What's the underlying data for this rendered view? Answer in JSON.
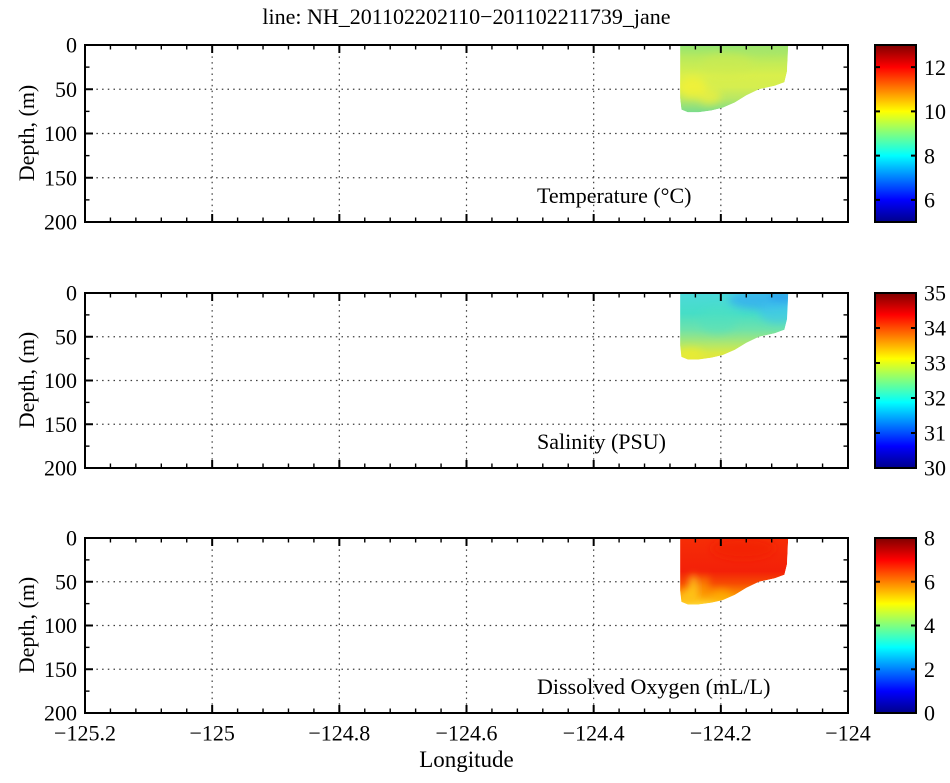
{
  "figure": {
    "background": "#ffffff",
    "text_color": "#000000"
  },
  "chart_data": {
    "type": "heatmap",
    "title": "line: NH_201102202110−201102211739_jane",
    "xlabel": "Longitude",
    "ylabel": "Depth, (m)",
    "x_range": [
      -125.2,
      -124
    ],
    "x_ticks": [
      -125.2,
      -125,
      -124.8,
      -124.6,
      -124.4,
      -124.2,
      -124
    ],
    "x_tick_labels": [
      "−125.2",
      "−125",
      "−124.8",
      "−124.6",
      "−124.4",
      "−124.2",
      "−124"
    ],
    "x_minor_step": 0.04,
    "y_range": [
      0,
      200
    ],
    "y_ticks": [
      0,
      50,
      100,
      150,
      200
    ],
    "y_tick_labels": [
      "0",
      "50",
      "100",
      "150",
      "200"
    ],
    "y_minor_ticks": [
      25,
      75,
      125,
      175
    ],
    "grid": "dotted at major ticks",
    "legend_position": "colorbar right of each panel",
    "colormap": "jet",
    "colorbar_gradient_top_to_bottom": [
      {
        "at": 0.0,
        "color": "#7f0000"
      },
      {
        "at": 0.125,
        "color": "#ff0000"
      },
      {
        "at": 0.375,
        "color": "#ffff00"
      },
      {
        "at": 0.625,
        "color": "#00ffff"
      },
      {
        "at": 0.875,
        "color": "#0000ff"
      },
      {
        "at": 1.0,
        "color": "#00008b"
      }
    ],
    "section_lon_extent": [
      -124.264,
      -124.094
    ],
    "section_max_depth_m": 76,
    "section_outline_lon_depth": [
      [
        -124.264,
        0.5
      ],
      [
        -124.094,
        0.5
      ],
      [
        -124.096,
        30
      ],
      [
        -124.1,
        42
      ],
      [
        -124.115,
        46
      ],
      [
        -124.14,
        50
      ],
      [
        -124.16,
        57
      ],
      [
        -124.178,
        65
      ],
      [
        -124.197,
        71
      ],
      [
        -124.215,
        74
      ],
      [
        -124.235,
        76
      ],
      [
        -124.252,
        76
      ],
      [
        -124.262,
        73
      ],
      [
        -124.264,
        60
      ]
    ],
    "panels": [
      {
        "label": "Temperature (°C)",
        "colorbar": {
          "min": 5,
          "max": 13,
          "ticks": [
            6,
            8,
            10,
            12
          ],
          "tick_labels": [
            "6",
            "8",
            "10",
            "12"
          ]
        },
        "approx_values": {
          "surface": 9.7,
          "mid_depth_pocket": 10.0,
          "bottom_edge": 9.2
        },
        "fill_stops": [
          {
            "at": 0.0,
            "color": "#93e573"
          },
          {
            "at": 0.18,
            "color": "#b9ea5c"
          },
          {
            "at": 0.45,
            "color": "#d9ef4b"
          },
          {
            "at": 0.62,
            "color": "#d5ee4f"
          },
          {
            "at": 0.8,
            "color": "#b7e765"
          },
          {
            "at": 0.93,
            "color": "#8fe07e"
          },
          {
            "at": 1.0,
            "color": "#7bdc8d"
          }
        ],
        "blobs": [
          {
            "lon": -124.245,
            "depth": 48,
            "lon_r": 0.022,
            "depth_r": 12,
            "color": "#f2f136",
            "opacity": 0.85
          },
          {
            "lon": -124.218,
            "depth": 58,
            "lon_r": 0.018,
            "depth_r": 9,
            "color": "#eef03c",
            "opacity": 0.7
          },
          {
            "lon": -124.12,
            "depth": 6,
            "lon_r": 0.05,
            "depth_r": 7,
            "color": "#a8e56a",
            "opacity": 0.55
          },
          {
            "lon": -124.19,
            "depth": 22,
            "lon_r": 0.04,
            "depth_r": 12,
            "color": "#cdec50",
            "opacity": 0.5
          }
        ]
      },
      {
        "label": "Salinity (PSU)",
        "colorbar": {
          "min": 30,
          "max": 35,
          "ticks": [
            30,
            31,
            32,
            33,
            34,
            35
          ],
          "tick_labels": [
            "30",
            "31",
            "32",
            "33",
            "34",
            "35"
          ]
        },
        "approx_values": {
          "surface_northeast": 31.8,
          "surface": 32.1,
          "mid": 32.4,
          "bottom_edge": 33.2
        },
        "fill_stops": [
          {
            "at": 0.0,
            "color": "#4cd9da"
          },
          {
            "at": 0.3,
            "color": "#46dec7"
          },
          {
            "at": 0.55,
            "color": "#6fe2aa"
          },
          {
            "at": 0.75,
            "color": "#abe771"
          },
          {
            "at": 0.9,
            "color": "#d9e943"
          },
          {
            "at": 1.0,
            "color": "#e4e73b"
          }
        ],
        "blobs": [
          {
            "lon": -124.133,
            "depth": 8,
            "lon_r": 0.055,
            "depth_r": 11,
            "color": "#33acf0",
            "opacity": 0.8
          },
          {
            "lon": -124.105,
            "depth": 4,
            "lon_r": 0.02,
            "depth_r": 6,
            "color": "#2a9bec",
            "opacity": 0.8
          },
          {
            "lon": -124.11,
            "depth": 22,
            "lon_r": 0.03,
            "depth_r": 13,
            "color": "#3fc3ee",
            "opacity": 0.6
          },
          {
            "lon": -124.248,
            "depth": 70,
            "lon_r": 0.02,
            "depth_r": 7,
            "color": "#e9ec33",
            "opacity": 0.85
          },
          {
            "lon": -124.205,
            "depth": 32,
            "lon_r": 0.03,
            "depth_r": 15,
            "color": "#50dfc2",
            "opacity": 0.45
          }
        ]
      },
      {
        "label": "Dissolved Oxygen (mL/L)",
        "colorbar": {
          "min": 0,
          "max": 8,
          "ticks": [
            0,
            2,
            4,
            6,
            8
          ],
          "tick_labels": [
            "0",
            "2",
            "4",
            "6",
            "8"
          ]
        },
        "approx_values": {
          "surface": 7.3,
          "mid": 6.9,
          "bottom_edge": 5.0
        },
        "fill_stops": [
          {
            "at": 0.0,
            "color": "#f62d06"
          },
          {
            "at": 0.5,
            "color": "#f32008"
          },
          {
            "at": 0.68,
            "color": "#f64a02"
          },
          {
            "at": 0.82,
            "color": "#fb8500"
          },
          {
            "at": 0.92,
            "color": "#fdb713"
          },
          {
            "at": 1.0,
            "color": "#ffd83a"
          }
        ],
        "blobs": [
          {
            "lon": -124.243,
            "depth": 58,
            "lon_r": 0.008,
            "depth_r": 16,
            "color": "#ffd21f",
            "opacity": 0.85
          },
          {
            "lon": -124.253,
            "depth": 67,
            "lon_r": 0.013,
            "depth_r": 8,
            "color": "#ffc319",
            "opacity": 0.85
          },
          {
            "lon": -124.225,
            "depth": 56,
            "lon_r": 0.006,
            "depth_r": 13,
            "color": "#fca201",
            "opacity": 0.7
          },
          {
            "lon": -124.2,
            "depth": 66,
            "lon_r": 0.016,
            "depth_r": 7,
            "color": "#fdae06",
            "opacity": 0.7
          },
          {
            "lon": -124.165,
            "depth": 12,
            "lon_r": 0.05,
            "depth_r": 12,
            "color": "#f21c03",
            "opacity": 0.6
          }
        ]
      }
    ]
  }
}
